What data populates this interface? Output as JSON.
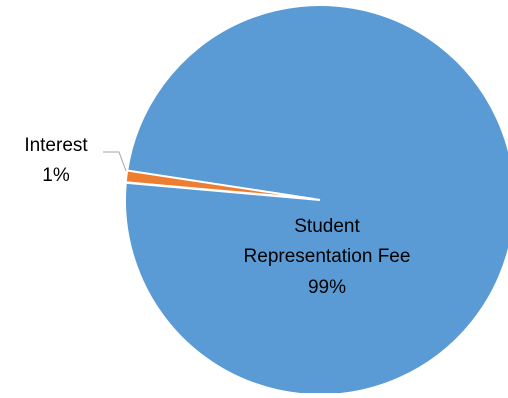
{
  "chart_data": {
    "type": "pie",
    "slices": [
      {
        "label": "Student Representation Fee",
        "value": 99,
        "percent_label": "99%",
        "color": "#5B9BD5"
      },
      {
        "label": "Interest",
        "value": 1,
        "percent_label": "1%",
        "color": "#ED7D31"
      }
    ],
    "legend": "none",
    "labels": {
      "main_line1": "Student",
      "main_line2": "Representation Fee",
      "main_percent": "99%",
      "small_line1": "Interest",
      "small_percent": "1%"
    }
  }
}
